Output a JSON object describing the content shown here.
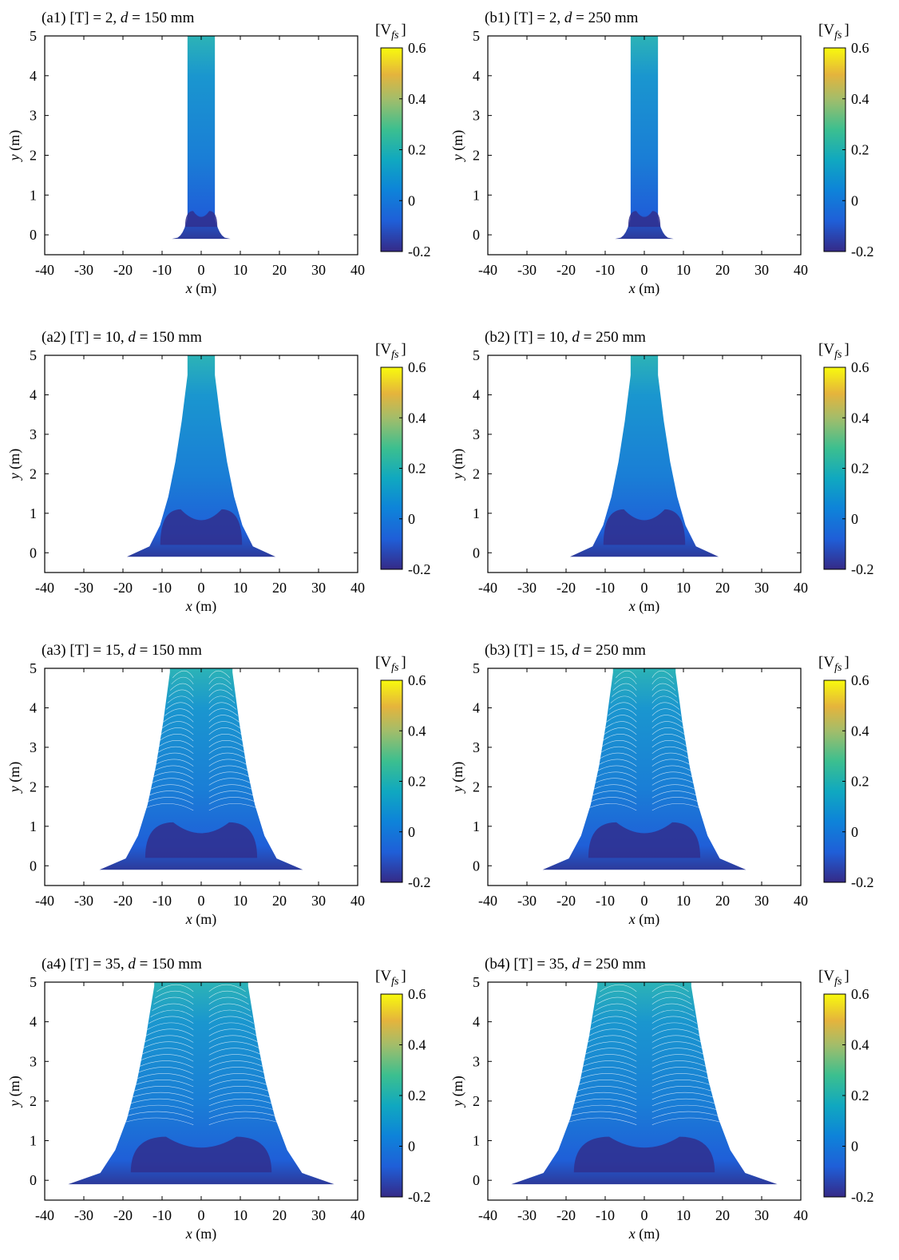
{
  "colorbar": {
    "label_main": "[V",
    "label_sub": "fs",
    "label_close": "]",
    "range": [
      -0.2,
      0.6
    ],
    "ticks": [
      "0.6",
      "0.4",
      "0.2",
      "0",
      "-0.2"
    ],
    "colormap": "parula"
  },
  "axes": {
    "x_var": "x",
    "x_unit": " (m)",
    "y_var": "y",
    "y_unit": " (m)",
    "xlim": [
      -40,
      40
    ],
    "ylim": [
      -0.5,
      5
    ],
    "xticks": [
      "-40",
      "-30",
      "-20",
      "-10",
      "0",
      "10",
      "20",
      "30",
      "40"
    ],
    "yticks": [
      "0",
      "1",
      "2",
      "3",
      "4",
      "5"
    ]
  },
  "chart_data": [
    {
      "type": "heatmap",
      "panel": "a1",
      "title_prefix": "(a1) [T] = 2, ",
      "title_d": "d",
      "title_suffix": " = 150 mm",
      "T": 2,
      "d_mm": 150,
      "half_width_base": 7.5,
      "half_width_top": 3.5,
      "flare_height": 0.5
    },
    {
      "type": "heatmap",
      "panel": "b1",
      "title_prefix": "(b1) [T] = 2, ",
      "title_d": "d",
      "title_suffix": " = 250 mm",
      "T": 2,
      "d_mm": 250,
      "half_width_base": 7.5,
      "half_width_top": 3.5,
      "flare_height": 0.5
    },
    {
      "type": "heatmap",
      "panel": "a2",
      "title_prefix": "(a2) [T] = 10, ",
      "title_d": "d",
      "title_suffix": " = 150 mm",
      "T": 10,
      "d_mm": 150,
      "half_width_base": 19,
      "half_width_top": 3.5,
      "flare_height": 4.6
    },
    {
      "type": "heatmap",
      "panel": "b2",
      "title_prefix": "(b2) [T] = 10, ",
      "title_d": "d",
      "title_suffix": " = 250 mm",
      "T": 10,
      "d_mm": 250,
      "half_width_base": 19,
      "half_width_top": 3.5,
      "flare_height": 4.6
    },
    {
      "type": "heatmap",
      "panel": "a3",
      "title_prefix": "(a3) [T] = 15, ",
      "title_d": "d",
      "title_suffix": " = 150 mm",
      "T": 15,
      "d_mm": 150,
      "half_width_base": 26,
      "half_width_top": 8,
      "flare_height": 5
    },
    {
      "type": "heatmap",
      "panel": "b3",
      "title_prefix": "(b3) [T] = 15, ",
      "title_d": "d",
      "title_suffix": " = 250 mm",
      "T": 15,
      "d_mm": 250,
      "half_width_base": 26,
      "half_width_top": 8,
      "flare_height": 5
    },
    {
      "type": "heatmap",
      "panel": "a4",
      "title_prefix": "(a4) [T] = 35, ",
      "title_d": "d",
      "title_suffix": " = 150 mm",
      "T": 35,
      "d_mm": 150,
      "half_width_base": 34,
      "half_width_top": 12,
      "flare_height": 5
    },
    {
      "type": "heatmap",
      "panel": "b4",
      "title_prefix": "(b4) [T] = 35, ",
      "title_d": "d",
      "title_suffix": " = 250 mm",
      "T": 35,
      "d_mm": 250,
      "half_width_base": 34,
      "half_width_top": 12,
      "flare_height": 5
    }
  ]
}
